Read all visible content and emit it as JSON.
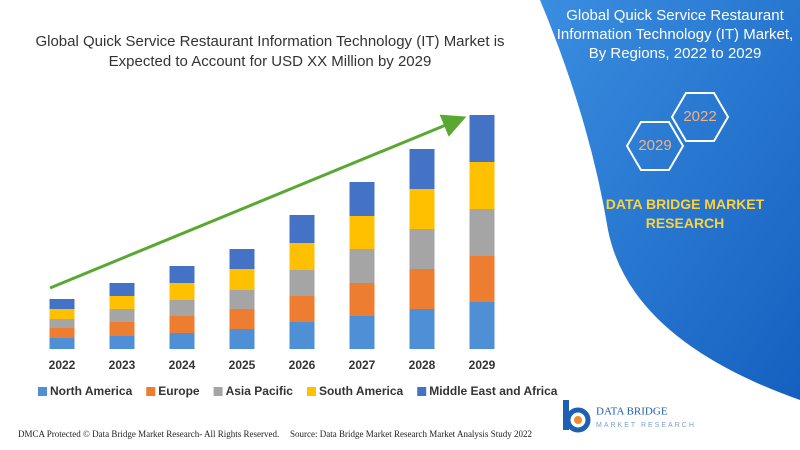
{
  "chart_data": {
    "type": "bar",
    "stacked": true,
    "title": "Global Quick Service Restaurant Information Technology (IT) Market is Expected to Account for USD XX Million by 2029",
    "categories": [
      "2022",
      "2023",
      "2024",
      "2025",
      "2026",
      "2027",
      "2028",
      "2029"
    ],
    "series": [
      {
        "name": "North America",
        "color": "#4e8fd6",
        "values": [
          11,
          13,
          16,
          20,
          27,
          33,
          40,
          47
        ]
      },
      {
        "name": "Europe",
        "color": "#ed7d31",
        "values": [
          10,
          14,
          17,
          20,
          26,
          33,
          40,
          46
        ]
      },
      {
        "name": "Asia Pacific",
        "color": "#a5a5a5",
        "values": [
          9,
          13,
          16,
          19,
          26,
          34,
          40,
          47
        ]
      },
      {
        "name": "South America",
        "color": "#ffc000",
        "values": [
          10,
          13,
          17,
          21,
          27,
          33,
          40,
          47
        ]
      },
      {
        "name": "Middle East and Africa",
        "color": "#4472c4",
        "values": [
          10,
          13,
          17,
          20,
          28,
          34,
          40,
          47
        ]
      }
    ]
  },
  "panel": {
    "title": "Global Quick Service Restaurant Information Technology (IT) Market, By Regions, 2022 to 2029",
    "hexagons": [
      "2022",
      "2029"
    ],
    "brand": "DATA BRIDGE MARKET RESEARCH"
  },
  "logo": {
    "name": "DATA BRIDGE",
    "tagline": "MARKET RESEARCH"
  },
  "footer": {
    "notice": "DMCA Protected © Data Bridge Market Research- All Rights Reserved.",
    "source": "Source: Data Bridge Market Research Market Analysis Study 2022"
  }
}
